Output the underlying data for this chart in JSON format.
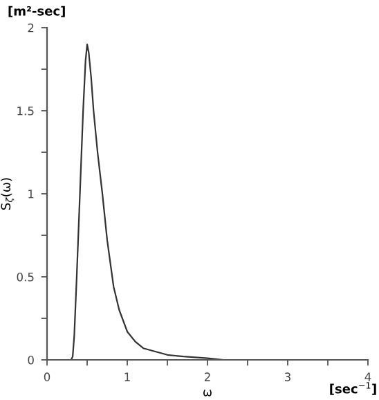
{
  "chart_data": {
    "type": "line",
    "xlabel": "ω",
    "ylabel": "S$_{ζ}$(ω)",
    "annotations": [
      "[m²-sec]",
      "[sec$^{−1}$]"
    ],
    "x": [
      0.3,
      0.32,
      0.34,
      0.37,
      0.41,
      0.45,
      0.48,
      0.5,
      0.52,
      0.55,
      0.58,
      0.63,
      0.69,
      0.75,
      0.83,
      0.9,
      1.0,
      1.1,
      1.2,
      1.35,
      1.5,
      1.7,
      2.0,
      2.2,
      2.4
    ],
    "series": [
      {
        "color": "#333333",
        "values": [
          0,
          0.02,
          0.15,
          0.5,
          1.0,
          1.5,
          1.8,
          1.9,
          1.85,
          1.7,
          1.5,
          1.25,
          1.0,
          0.72,
          0.44,
          0.3,
          0.17,
          0.11,
          0.07,
          0.05,
          0.03,
          0.02,
          0.01,
          0,
          0
        ]
      }
    ],
    "xlim": [
      0,
      4
    ],
    "ylim": [
      0,
      2
    ],
    "xticks": [
      0,
      {
        "value": 0.5,
        "label": null
      },
      1,
      {
        "value": 1.5,
        "label": null
      },
      2,
      {
        "value": 2.5,
        "label": null
      },
      3,
      {
        "value": 3.5,
        "label": null
      },
      4
    ],
    "yticks": [
      0,
      {
        "value": 0.25,
        "label": null
      },
      0.5,
      {
        "value": 0.75,
        "label": null
      },
      1,
      {
        "value": 1.25,
        "label": null
      },
      1.5,
      {
        "value": 1.75,
        "label": null
      },
      2
    ],
    "grid": false,
    "legend": false,
    "marker": "none",
    "line_style": "solid"
  }
}
